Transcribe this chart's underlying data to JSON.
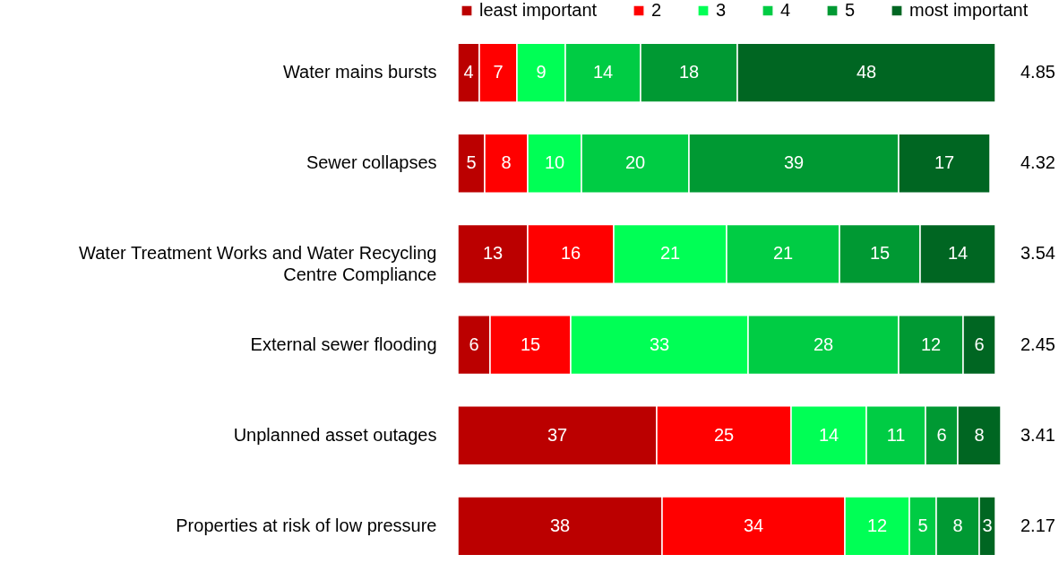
{
  "chart_data": {
    "type": "bar",
    "orientation": "horizontal",
    "stacked": true,
    "data_labels": true,
    "legend": "top",
    "grid": false,
    "categories": [
      "Water mains bursts",
      "Sewer collapses",
      "Water Treatment Works and Water Recycling Centre Compliance",
      "External sewer flooding",
      "Unplanned asset outages",
      "Properties at risk of low pressure"
    ],
    "series": [
      {
        "name": "least important",
        "color": "#bb0000",
        "values": [
          4,
          5,
          13,
          6,
          37,
          38
        ]
      },
      {
        "name": "2",
        "color": "#ff0000",
        "values": [
          7,
          8,
          16,
          15,
          25,
          34
        ]
      },
      {
        "name": "3",
        "color": "#00ff55",
        "values": [
          9,
          10,
          21,
          33,
          14,
          12
        ]
      },
      {
        "name": "4",
        "color": "#00cc44",
        "values": [
          14,
          20,
          21,
          28,
          11,
          5
        ]
      },
      {
        "name": "5",
        "color": "#009933",
        "values": [
          18,
          39,
          15,
          12,
          6,
          8
        ]
      },
      {
        "name": "most important",
        "color": "#006622",
        "values": [
          48,
          17,
          14,
          6,
          8,
          3
        ]
      }
    ],
    "annotations": [
      "4.85",
      "4.32",
      "3.54",
      "2.45",
      "3.41",
      "2.17"
    ]
  }
}
